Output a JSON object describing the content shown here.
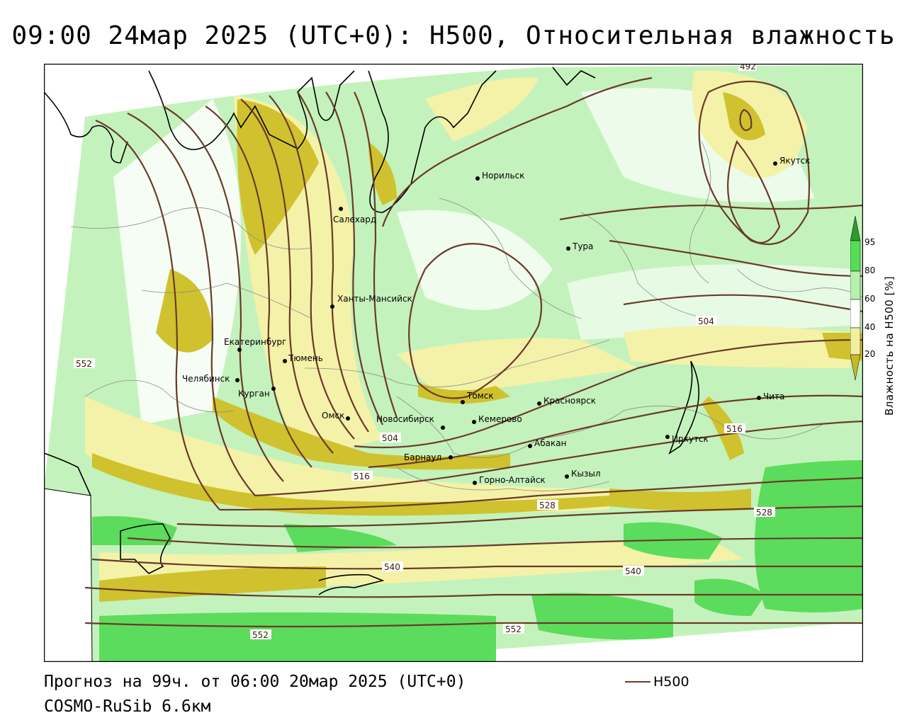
{
  "title": "09:00 24мар 2025 (UTC+0): H500, Относительная влажность",
  "footer": {
    "forecast": "Прогноз на 99ч. от 06:00 20мар 2025 (UTC+0)",
    "model": "COSMO-RuSib 6.6км"
  },
  "legend": {
    "h500_label": "H500",
    "h500_color": "#6b3a2a"
  },
  "colorbar": {
    "label": "Влажность на H500 [%]",
    "ticks": [
      "95",
      "80",
      "60",
      "40",
      "20"
    ],
    "colors": {
      "very_dry": "#c8b828",
      "dry": "#f0f0a0",
      "white": "#ffffff",
      "moist": "#b8f0b0",
      "wet": "#58dc58",
      "saturated": "#2e9a2e"
    }
  },
  "cities": [
    {
      "name": "Салехард"
    },
    {
      "name": "Норильск"
    },
    {
      "name": "Тура"
    },
    {
      "name": "Якутск"
    },
    {
      "name": "Ханты-Мансийск"
    },
    {
      "name": "Екатеринбург"
    },
    {
      "name": "Тюмень"
    },
    {
      "name": "Челябинск"
    },
    {
      "name": "Курган"
    },
    {
      "name": "Омск"
    },
    {
      "name": "Новосибирск"
    },
    {
      "name": "Томск"
    },
    {
      "name": "Кемерово"
    },
    {
      "name": "Красноярск"
    },
    {
      "name": "Абакан"
    },
    {
      "name": "Барнаул"
    },
    {
      "name": "Горно-Алтайск"
    },
    {
      "name": "Кызыл"
    },
    {
      "name": "Иркутск"
    },
    {
      "name": "Чита"
    }
  ],
  "contour_labels": [
    "492",
    "504",
    "504",
    "516",
    "516",
    "528",
    "528",
    "540",
    "540",
    "552",
    "552",
    "552"
  ]
}
